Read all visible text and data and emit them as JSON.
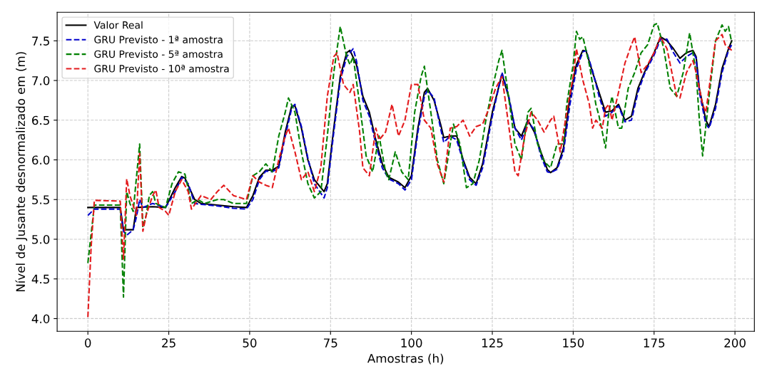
{
  "chart_data": {
    "type": "line",
    "xlabel": "Amostras (h)",
    "ylabel": "Nível de Jusante desnormalizado em (m)",
    "xlim": [
      -9.5,
      206
    ],
    "ylim": [
      3.84,
      7.86
    ],
    "xticks": [
      0,
      25,
      50,
      75,
      100,
      125,
      150,
      175,
      200
    ],
    "yticks": [
      {
        "value": 4,
        "label": "4.0"
      },
      4.5,
      {
        "value": 5,
        "label": "5.0"
      },
      5.5,
      {
        "value": 6,
        "label": "6.0"
      },
      6.5,
      {
        "value": 7,
        "label": "7.0"
      },
      7.5
    ],
    "grid": true,
    "legend": "top left",
    "series": [
      {
        "name": "Valor Real",
        "color": "#000000",
        "line_style": "solid",
        "x": [
          0,
          10,
          11,
          13,
          14,
          15,
          20,
          24,
          27,
          29,
          30,
          33,
          35,
          40,
          45,
          49,
          51,
          53,
          55,
          57,
          59,
          61,
          63,
          64,
          66,
          68,
          70,
          73,
          74,
          76,
          78,
          80,
          81,
          83,
          85,
          87,
          89,
          91,
          93,
          96,
          98,
          100,
          102,
          104,
          105,
          107,
          109,
          110,
          112,
          114,
          116,
          118,
          120,
          122,
          125,
          128,
          130,
          132,
          134,
          136,
          138,
          140,
          142,
          143,
          145,
          147,
          149,
          151,
          153,
          154,
          156,
          158,
          160,
          162,
          164,
          166,
          168,
          170,
          172,
          175,
          177,
          179,
          181,
          183,
          185,
          187,
          188,
          189,
          191,
          192,
          194,
          196,
          198,
          199
        ],
        "values": [
          5.4,
          5.4,
          5.12,
          5.12,
          5.12,
          5.4,
          5.41,
          5.4,
          5.65,
          5.79,
          5.77,
          5.5,
          5.45,
          5.43,
          5.41,
          5.4,
          5.55,
          5.78,
          5.87,
          5.87,
          5.92,
          6.35,
          6.68,
          6.68,
          6.4,
          6.0,
          5.75,
          5.6,
          5.7,
          6.4,
          7.05,
          7.35,
          7.38,
          7.2,
          6.8,
          6.6,
          6.25,
          5.95,
          5.78,
          5.72,
          5.65,
          5.8,
          6.4,
          6.85,
          6.9,
          6.75,
          6.45,
          6.28,
          6.3,
          6.3,
          6.0,
          5.78,
          5.7,
          5.95,
          6.6,
          7.08,
          6.8,
          6.4,
          6.3,
          6.5,
          6.35,
          6.1,
          5.88,
          5.84,
          5.9,
          6.15,
          6.8,
          7.2,
          7.38,
          7.37,
          7.1,
          6.85,
          6.6,
          6.62,
          6.7,
          6.5,
          6.55,
          6.9,
          7.1,
          7.35,
          7.55,
          7.5,
          7.4,
          7.28,
          7.35,
          7.38,
          7.3,
          6.9,
          6.5,
          6.42,
          6.7,
          7.15,
          7.4,
          7.5
        ]
      },
      {
        "name": "GRU Previsto - 1ª amostra",
        "color": "#0000cc",
        "line_style": "dashed",
        "x": [
          0,
          2,
          10,
          11,
          12,
          14,
          15,
          16,
          17,
          20,
          24,
          27,
          29,
          31,
          33,
          35,
          40,
          45,
          49,
          51,
          53,
          55,
          57,
          59,
          61,
          63,
          64,
          66,
          68,
          70,
          73,
          74,
          76,
          78,
          80,
          82,
          83,
          85,
          87,
          89,
          91,
          93,
          96,
          98,
          100,
          102,
          104,
          105,
          107,
          109,
          110,
          112,
          114,
          116,
          118,
          120,
          122,
          125,
          128,
          130,
          132,
          134,
          136,
          138,
          140,
          142,
          143,
          145,
          147,
          149,
          151,
          153,
          154,
          156,
          158,
          160,
          162,
          164,
          166,
          168,
          170,
          172,
          175,
          177,
          179,
          181,
          183,
          185,
          187,
          188,
          189,
          191,
          192,
          194,
          196,
          198,
          199
        ],
        "values": [
          5.3,
          5.38,
          5.38,
          5.1,
          5.05,
          5.12,
          5.28,
          5.5,
          5.4,
          5.45,
          5.4,
          5.6,
          5.78,
          5.7,
          5.45,
          5.44,
          5.42,
          5.39,
          5.38,
          5.5,
          5.75,
          5.86,
          5.85,
          5.9,
          6.3,
          6.65,
          6.7,
          6.42,
          6.02,
          5.7,
          5.52,
          5.65,
          6.35,
          7.0,
          7.3,
          7.4,
          7.25,
          6.75,
          6.55,
          6.2,
          5.9,
          5.76,
          5.7,
          5.62,
          5.75,
          6.35,
          6.8,
          6.88,
          6.78,
          6.4,
          6.22,
          6.3,
          6.25,
          5.98,
          5.75,
          5.68,
          5.9,
          6.55,
          7.1,
          6.82,
          6.4,
          6.25,
          6.48,
          6.38,
          6.05,
          5.85,
          5.84,
          5.88,
          6.1,
          6.7,
          7.15,
          7.36,
          7.38,
          7.12,
          6.8,
          6.55,
          6.6,
          6.68,
          6.48,
          6.5,
          6.85,
          7.08,
          7.32,
          7.52,
          7.52,
          7.35,
          7.22,
          7.3,
          7.35,
          7.28,
          6.85,
          6.45,
          6.4,
          6.65,
          7.1,
          7.38,
          7.45
        ]
      },
      {
        "name": "GRU Previsto - 5ª amostra",
        "color": "#008000",
        "line_style": "dashed",
        "x": [
          0,
          2,
          10,
          11,
          12,
          13,
          14,
          16,
          17,
          18,
          19,
          20,
          21,
          24,
          26,
          28,
          30,
          32,
          34,
          36,
          40,
          42,
          45,
          49,
          51,
          53,
          55,
          57,
          59,
          61,
          62,
          64,
          66,
          68,
          70,
          72,
          74,
          76,
          78,
          80,
          81,
          82,
          84,
          86,
          88,
          90,
          92,
          93,
          95,
          97,
          99,
          101,
          103,
          104,
          106,
          108,
          110,
          112,
          113,
          115,
          117,
          119,
          121,
          123,
          125,
          127,
          128,
          130,
          132,
          134,
          136,
          137,
          139,
          141,
          143,
          145,
          147,
          148,
          150,
          151,
          152,
          153,
          155,
          157,
          158,
          160,
          161,
          162,
          164,
          165,
          167,
          169,
          171,
          173,
          175,
          176,
          178,
          180,
          182,
          184,
          186,
          188,
          189,
          190,
          192,
          194,
          196,
          197,
          198,
          199
        ],
        "values": [
          4.7,
          5.43,
          5.43,
          4.27,
          5.6,
          5.45,
          5.35,
          6.2,
          5.15,
          5.3,
          5.55,
          5.6,
          5.45,
          5.4,
          5.7,
          5.85,
          5.82,
          5.45,
          5.5,
          5.45,
          5.5,
          5.5,
          5.45,
          5.45,
          5.8,
          5.85,
          5.95,
          5.85,
          6.3,
          6.6,
          6.78,
          6.6,
          6.1,
          5.7,
          5.52,
          5.6,
          6.3,
          7.1,
          7.68,
          7.3,
          7.2,
          7.3,
          6.7,
          6.05,
          5.85,
          6.3,
          5.85,
          5.75,
          6.1,
          5.85,
          5.75,
          6.6,
          7.05,
          7.18,
          6.6,
          6.0,
          5.7,
          6.2,
          6.45,
          6.2,
          5.65,
          5.7,
          6.0,
          6.5,
          6.9,
          7.25,
          7.38,
          6.8,
          6.2,
          6.0,
          6.6,
          6.65,
          6.2,
          5.98,
          5.9,
          6.2,
          6.2,
          6.7,
          7.2,
          7.62,
          7.52,
          7.55,
          7.2,
          6.7,
          6.55,
          6.15,
          6.6,
          6.8,
          6.4,
          6.4,
          6.9,
          7.1,
          7.35,
          7.45,
          7.7,
          7.72,
          7.4,
          6.9,
          6.8,
          7.1,
          7.6,
          7.1,
          6.5,
          6.05,
          6.8,
          7.5,
          7.7,
          7.62,
          7.68,
          7.48
        ]
      },
      {
        "name": "GRU Previsto - 10ª amostra",
        "color": "#e31a1c",
        "line_style": "dashed",
        "x": [
          0,
          1,
          2,
          10,
          11,
          12,
          13,
          15,
          16,
          17,
          18,
          20,
          21,
          22,
          24,
          25,
          27,
          29,
          31,
          32,
          35,
          38,
          40,
          42,
          45,
          49,
          51,
          53,
          55,
          57,
          59,
          61,
          62,
          64,
          66,
          68,
          70,
          72,
          74,
          76,
          77,
          79,
          81,
          82,
          84,
          85,
          87,
          89,
          90,
          92,
          94,
          96,
          98,
          100,
          102,
          104,
          106,
          108,
          110,
          112,
          114,
          116,
          118,
          120,
          122,
          124,
          126,
          128,
          130,
          132,
          133,
          135,
          137,
          139,
          141,
          143,
          144,
          146,
          148,
          150,
          151,
          153,
          155,
          156,
          157,
          159,
          160,
          161,
          162,
          164,
          166,
          168,
          169,
          171,
          173,
          175,
          177,
          179,
          181,
          182,
          183,
          185,
          187,
          188,
          190,
          191,
          193,
          194,
          196,
          197,
          199
        ],
        "values": [
          4.02,
          4.9,
          5.49,
          5.48,
          4.75,
          5.76,
          5.55,
          5.3,
          6.08,
          5.1,
          5.3,
          5.55,
          5.62,
          5.4,
          5.35,
          5.3,
          5.6,
          5.75,
          5.6,
          5.38,
          5.55,
          5.5,
          5.6,
          5.68,
          5.55,
          5.5,
          5.8,
          5.72,
          5.68,
          5.65,
          6.0,
          6.3,
          6.4,
          6.1,
          5.75,
          5.85,
          5.6,
          5.9,
          6.8,
          7.3,
          7.35,
          6.95,
          6.85,
          6.95,
          6.35,
          5.9,
          5.8,
          6.4,
          6.25,
          6.35,
          6.7,
          6.3,
          6.5,
          6.95,
          6.95,
          6.5,
          6.4,
          5.95,
          5.72,
          6.4,
          6.42,
          6.5,
          6.3,
          6.42,
          6.45,
          6.65,
          6.9,
          7.05,
          6.45,
          5.85,
          5.8,
          6.3,
          6.6,
          6.5,
          6.35,
          6.5,
          6.55,
          6.1,
          6.6,
          7.05,
          7.4,
          7.0,
          6.7,
          6.4,
          6.5,
          6.4,
          6.65,
          6.7,
          6.5,
          6.85,
          7.22,
          7.45,
          7.55,
          7.1,
          7.2,
          7.35,
          7.55,
          7.4,
          7.0,
          6.8,
          6.78,
          7.1,
          7.25,
          7.1,
          6.7,
          6.6,
          7.2,
          7.5,
          7.58,
          7.45,
          7.38
        ]
      }
    ]
  }
}
